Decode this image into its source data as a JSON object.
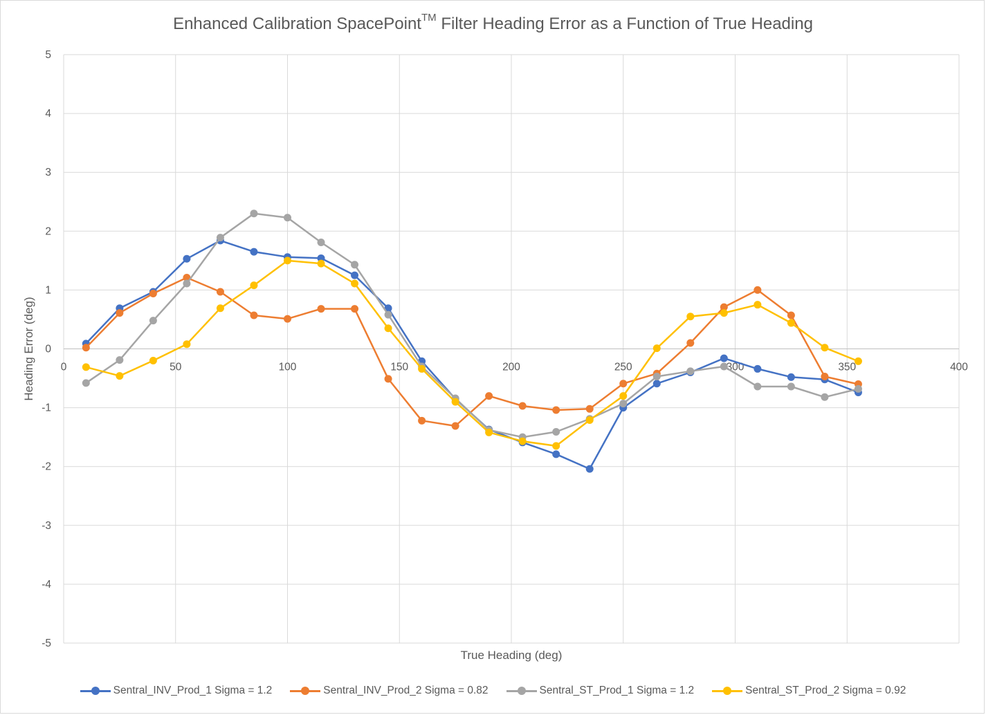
{
  "chart_data": {
    "type": "line",
    "title_main": "Enhanced Calibration SpacePoint",
    "title_sup": "TM",
    "title_rest": " Filter Heading Error as a Function of True Heading",
    "xlabel": "True Heading (deg)",
    "ylabel": "Heading Error (deg)",
    "xlim": [
      0,
      400
    ],
    "ylim": [
      -5,
      5
    ],
    "xticks": [
      0,
      50,
      100,
      150,
      200,
      250,
      300,
      350,
      400
    ],
    "yticks": [
      -5,
      -4,
      -3,
      -2,
      -1,
      0,
      1,
      2,
      3,
      4,
      5
    ],
    "grid": true,
    "legend_position": "bottom",
    "x": [
      10,
      25,
      40,
      55,
      70,
      85,
      100,
      115,
      130,
      145,
      160,
      175,
      190,
      205,
      220,
      235,
      250,
      265,
      280,
      295,
      310,
      325,
      340,
      355
    ],
    "series": [
      {
        "name": "Sentral_INV_Prod_1 Sigma = 1.2",
        "color": "#4472c4",
        "values": [
          0.09,
          0.69,
          0.97,
          1.53,
          1.84,
          1.65,
          1.56,
          1.54,
          1.25,
          0.69,
          -0.21,
          -0.85,
          -1.37,
          -1.59,
          -1.79,
          -2.04,
          -1.0,
          -0.59,
          -0.4,
          -0.16,
          -0.34,
          -0.48,
          -0.52,
          -0.74
        ]
      },
      {
        "name": "Sentral_INV_Prod_2 Sigma = 0.82",
        "color": "#ed7d31",
        "values": [
          0.02,
          0.61,
          0.94,
          1.21,
          0.97,
          0.57,
          0.51,
          0.68,
          0.68,
          -0.51,
          -1.22,
          -1.31,
          -0.8,
          -0.97,
          -1.04,
          -1.02,
          -0.59,
          -0.42,
          0.1,
          0.71,
          1.0,
          0.57,
          -0.47,
          -0.6
        ]
      },
      {
        "name": "Sentral_ST_Prod_1 Sigma = 1.2",
        "color": "#a5a5a5",
        "values": [
          -0.58,
          -0.19,
          0.48,
          1.11,
          1.89,
          2.3,
          2.23,
          1.81,
          1.43,
          0.58,
          -0.3,
          -0.84,
          -1.38,
          -1.5,
          -1.41,
          -1.19,
          -0.93,
          -0.47,
          -0.38,
          -0.3,
          -0.64,
          -0.64,
          -0.82,
          -0.68
        ]
      },
      {
        "name": "Sentral_ST_Prod_2 Sigma = 0.92",
        "color": "#ffc000",
        "values": [
          -0.31,
          -0.46,
          -0.2,
          0.08,
          0.69,
          1.08,
          1.5,
          1.45,
          1.11,
          0.35,
          -0.34,
          -0.9,
          -1.42,
          -1.57,
          -1.65,
          -1.21,
          -0.8,
          0.01,
          0.55,
          0.61,
          0.75,
          0.44,
          0.02,
          -0.21
        ]
      }
    ]
  }
}
